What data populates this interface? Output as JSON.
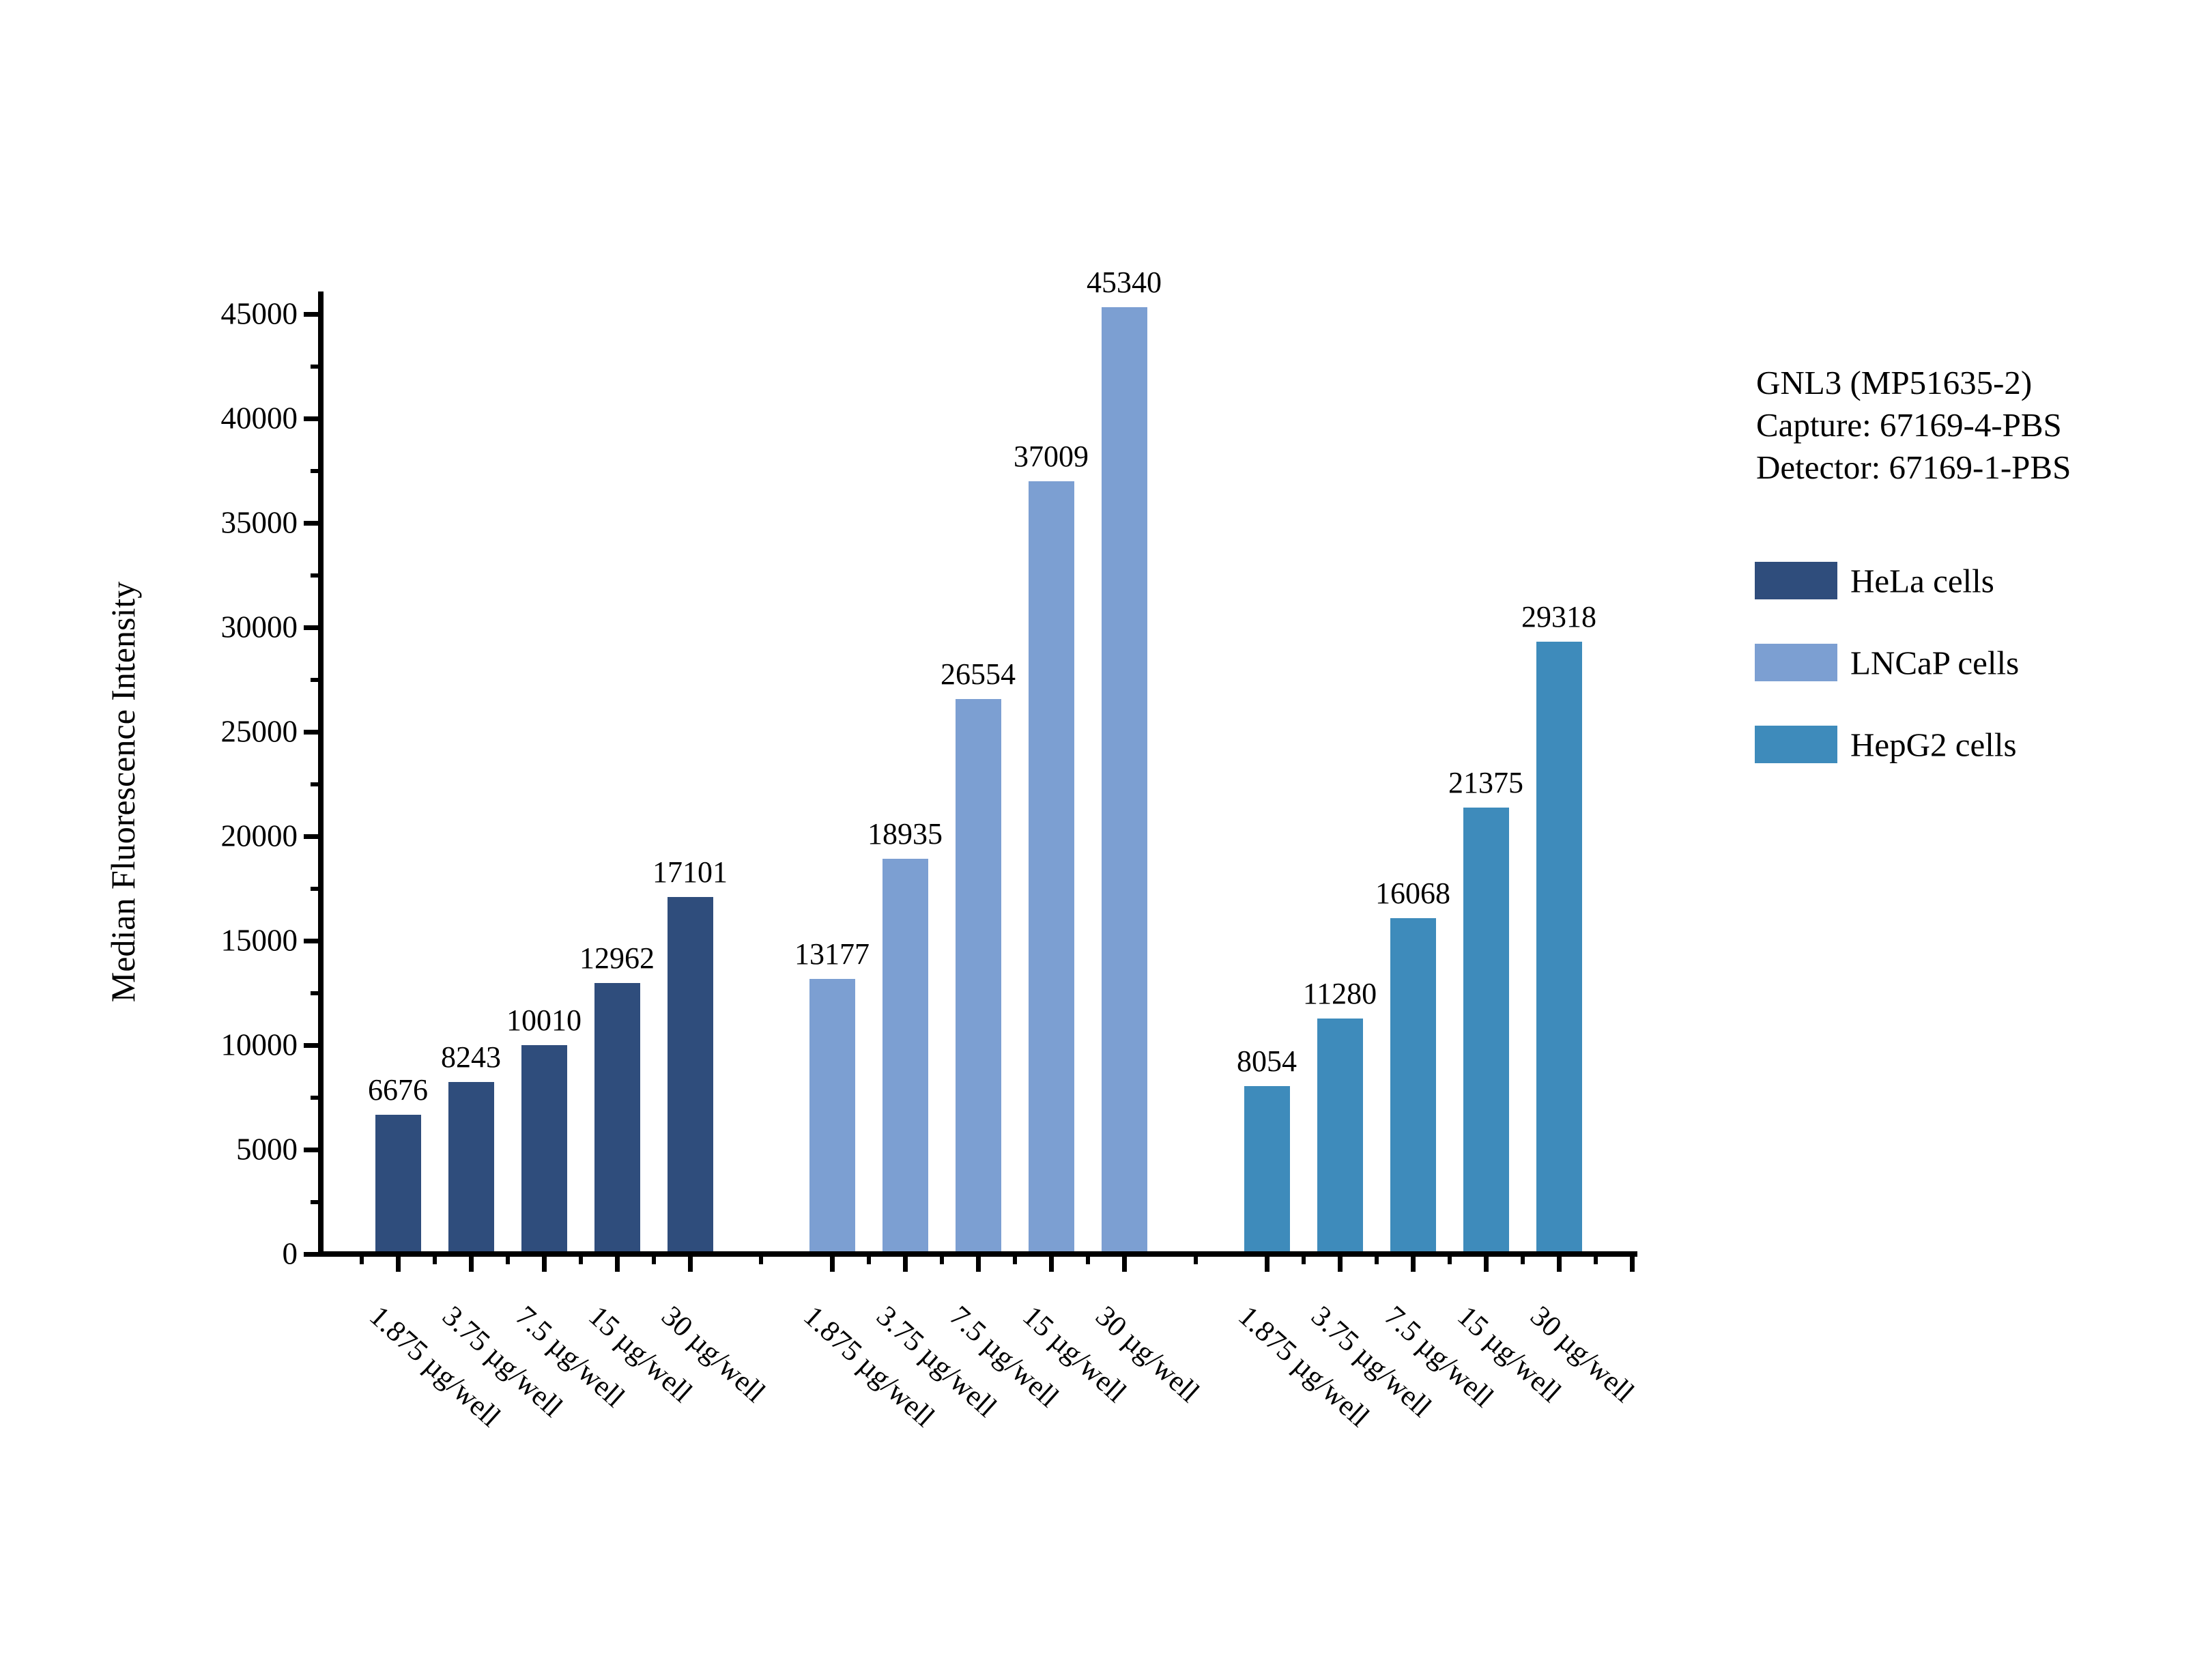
{
  "annotation": {
    "lines": [
      "GNL3 (MP51635-2)",
      "Capture: 67169-4-PBS",
      "Detector: 67169-1-PBS"
    ]
  },
  "legend": {
    "items": [
      {
        "label": "HeLa cells",
        "color": "#2F4D7C"
      },
      {
        "label": "LNCaP cells",
        "color": "#7C9FD2"
      },
      {
        "label": "HepG2 cells",
        "color": "#3E8BBB"
      }
    ]
  },
  "chart_data": {
    "type": "bar",
    "title": "",
    "xlabel": "",
    "ylabel": "Median Fluorescence Intensity",
    "ylim": [
      0,
      45000
    ],
    "y_major_step": 5000,
    "y_minor_step": 2500,
    "y_tick_labels": [
      "0",
      "5000",
      "10000",
      "15000",
      "20000",
      "25000",
      "30000",
      "35000",
      "40000",
      "45000"
    ],
    "grid": false,
    "legend_position": "right",
    "bar_value_labels": true,
    "categories": [
      "1.875 µg/well",
      "3.75 µg/well",
      "7.5 µg/well",
      "15 µg/well",
      "30 µg/well"
    ],
    "series": [
      {
        "name": "HeLa cells",
        "color": "#2F4D7C",
        "values": [
          6676,
          8243,
          10010,
          12962,
          17101
        ]
      },
      {
        "name": "LNCaP cells",
        "color": "#7C9FD2",
        "values": [
          13177,
          18935,
          26554,
          37009,
          45340
        ]
      },
      {
        "name": "HepG2 cells",
        "color": "#3E8BBB",
        "values": [
          8054,
          11280,
          16068,
          21375,
          29318
        ]
      }
    ]
  }
}
